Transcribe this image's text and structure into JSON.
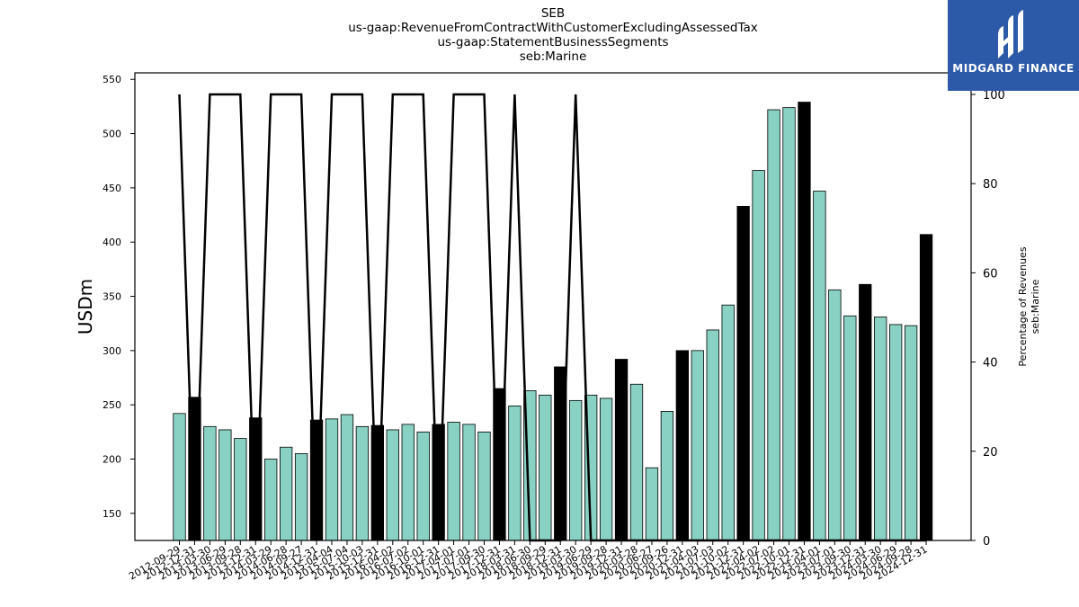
{
  "header": {
    "title_lines": [
      "SEB",
      "us-gaap:RevenueFromContractWithCustomerExcludingAssessedTax",
      "us-gaap:StatementBusinessSegments",
      "seb:Marine"
    ]
  },
  "logo": {
    "text": "MIDGARD FINANCE"
  },
  "chart_data": {
    "type": "bar",
    "title": "SEB",
    "subtitle": [
      "us-gaap:RevenueFromContractWithCustomerExcludingAssessedTax",
      "us-gaap:StatementBusinessSegments",
      "seb:Marine"
    ],
    "ylabel": "USDm",
    "y2label": [
      "Percentage of Revenues",
      "seb:Marine"
    ],
    "ylim": [
      125,
      556
    ],
    "y2lim": [
      0,
      100
    ],
    "yticks": [
      150,
      200,
      250,
      300,
      350,
      400,
      450,
      500,
      550
    ],
    "y2ticks": [
      0,
      20,
      40,
      60,
      80,
      100
    ],
    "grid": false,
    "colors": {
      "quarter_bar": "#88d1c3",
      "annual_bar": "#000000",
      "line": "#000000"
    },
    "categories": [
      "2012-09-29",
      "2012-12-31",
      "2013-03-30",
      "2013-06-29",
      "2013-09-28",
      "2013-12-31",
      "2014-03-29",
      "2014-06-28",
      "2014-09-27",
      "2014-12-31",
      "2015-04-04",
      "2015-07-04",
      "2015-10-03",
      "2015-12-31",
      "2016-04-02",
      "2016-07-02",
      "2016-10-01",
      "2016-12-31",
      "2017-04-01",
      "2017-07-01",
      "2017-09-30",
      "2017-12-31",
      "2018-03-31",
      "2018-06-30",
      "2018-09-29",
      "2018-12-31",
      "2019-03-30",
      "2019-06-29",
      "2019-09-28",
      "2019-12-31",
      "2020-03-28",
      "2020-06-27",
      "2020-09-26",
      "2020-12-31",
      "2021-04-03",
      "2021-07-03",
      "2021-10-02",
      "2021-12-31",
      "2022-04-02",
      "2022-07-02",
      "2022-10-01",
      "2022-12-31",
      "2023-04-01",
      "2023-07-01",
      "2023-09-30",
      "2023-12-31",
      "2024-03-30",
      "2024-06-29",
      "2024-09-28",
      "2024-12-31"
    ],
    "x_tick_labels": [
      "2012-09-29",
      "2012-12-31",
      "2013-03-30",
      "2013-06-29",
      "2013-09-28",
      "2013-12-31",
      "2014-03-29",
      "2014-06-28",
      "2014-09-27",
      "2014-12-31",
      "2015-04-04",
      "2015-07-04",
      "2015-10-03",
      "2015-12-31",
      "2016-04-02",
      "2016-07-02",
      "2016-10-01",
      "2016-12-31",
      "2017-04-01",
      "2017-07-01",
      "2017-09-30",
      "2017-12-31",
      "2018-03-31",
      "2018-06-30",
      "2018-09-29",
      "2018-12-31",
      "2019-03-30",
      "2019-06-29",
      "2019-09-28",
      "2019-12-31",
      "2020-03-28",
      "2020-06-27",
      "2020-09-26",
      "2020-12-31",
      "2021-04-03",
      "2021-07-03",
      "2021-10-02",
      "2021-12-31",
      "2022-04-02",
      "2022-07-02",
      "2022-10-01",
      "2022-12-31",
      "2023-04-01",
      "2023-07-01",
      "2023-09-30",
      "2023-12-31",
      "2024-03-30",
      "2024-06-29",
      "2024-09-28",
      "2024-12-31"
    ],
    "series": [
      {
        "values": [
          242,
          257,
          230,
          227,
          219,
          238,
          200,
          211,
          205,
          236,
          237,
          241,
          230,
          231,
          227,
          232,
          225,
          232,
          234,
          232,
          225,
          265,
          249,
          263,
          259,
          285,
          254,
          259,
          256,
          292,
          269,
          192,
          244,
          300,
          300,
          319,
          342,
          433,
          466,
          522,
          524,
          529,
          447,
          356,
          332,
          361,
          331,
          324,
          323,
          407
        ],
        "annual": [
          false,
          true,
          false,
          false,
          false,
          true,
          false,
          false,
          false,
          true,
          false,
          false,
          false,
          true,
          false,
          false,
          false,
          true,
          false,
          false,
          false,
          true,
          false,
          false,
          false,
          true,
          false,
          false,
          false,
          true,
          false,
          false,
          false,
          true,
          false,
          false,
          false,
          true,
          false,
          false,
          false,
          true,
          false,
          false,
          false,
          true,
          false,
          false,
          false,
          true
        ]
      },
      {
        "axis": "right",
        "type": "line",
        "values": [
          100,
          0,
          100,
          100,
          100,
          0,
          100,
          100,
          100,
          0,
          100,
          100,
          100,
          0,
          100,
          100,
          100,
          0,
          100,
          100,
          100,
          0,
          100,
          0,
          0,
          0,
          100,
          0,
          0,
          0,
          0,
          0,
          0,
          0,
          0,
          0,
          0,
          0,
          0,
          0,
          0,
          0,
          0,
          0,
          0,
          0,
          0,
          0,
          0,
          0
        ]
      }
    ]
  }
}
